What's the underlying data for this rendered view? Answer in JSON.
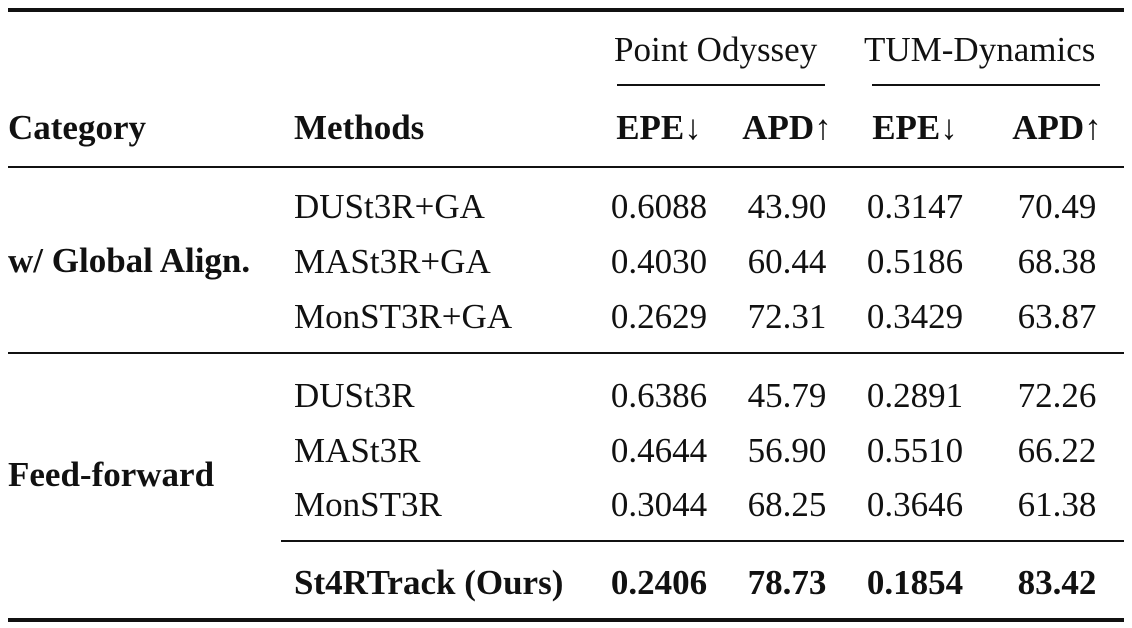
{
  "table": {
    "group_headers": [
      "Point Odyssey",
      "TUM-Dynamics"
    ],
    "col_headers": {
      "category": "Category",
      "methods": "Methods",
      "metrics": [
        "EPE↓",
        "APD↑",
        "EPE↓",
        "APD↑"
      ]
    },
    "groups": [
      {
        "category": "w/ Global Align.",
        "rows": [
          {
            "method": "DUSt3R+GA",
            "values": [
              "0.6088",
              "43.90",
              "0.3147",
              "70.49"
            ]
          },
          {
            "method": "MASt3R+GA",
            "values": [
              "0.4030",
              "60.44",
              "0.5186",
              "68.38"
            ]
          },
          {
            "method": "MonST3R+GA",
            "values": [
              "0.2629",
              "72.31",
              "0.3429",
              "63.87"
            ]
          }
        ]
      },
      {
        "category": "Feed-forward",
        "rows": [
          {
            "method": "DUSt3R",
            "values": [
              "0.6386",
              "45.79",
              "0.2891",
              "72.26"
            ]
          },
          {
            "method": "MASt3R",
            "values": [
              "0.4644",
              "56.90",
              "0.5510",
              "66.22"
            ]
          },
          {
            "method": "MonST3R",
            "values": [
              "0.3044",
              "68.25",
              "0.3646",
              "61.38"
            ]
          }
        ]
      }
    ],
    "ours": {
      "method": "St4RTrack (Ours)",
      "values": [
        "0.2406",
        "78.73",
        "0.1854",
        "83.42"
      ]
    }
  }
}
